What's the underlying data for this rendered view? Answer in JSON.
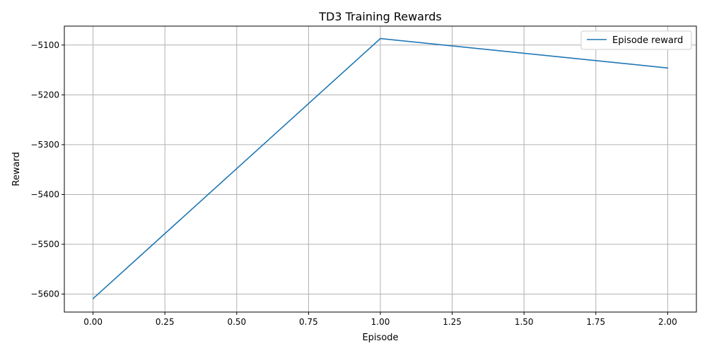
{
  "chart_data": {
    "type": "line",
    "title": "TD3 Training Rewards",
    "xlabel": "Episode",
    "ylabel": "Reward",
    "xlim": [
      -0.1,
      2.1
    ],
    "ylim": [
      -5636,
      -5062
    ],
    "x_ticks": [
      0.0,
      0.25,
      0.5,
      0.75,
      1.0,
      1.25,
      1.5,
      1.75,
      2.0
    ],
    "x_tick_labels": [
      "0.00",
      "0.25",
      "0.50",
      "0.75",
      "1.00",
      "1.25",
      "1.50",
      "1.75",
      "2.00"
    ],
    "y_ticks": [
      -5600,
      -5500,
      -5400,
      -5300,
      -5200,
      -5100
    ],
    "y_tick_labels": [
      "−5600",
      "−5500",
      "−5400",
      "−5300",
      "−5200",
      "−5100"
    ],
    "grid": true,
    "legend_position": "top-right",
    "series": [
      {
        "name": "Episode reward",
        "color": "#1f77b4",
        "x": [
          0,
          1,
          2
        ],
        "y": [
          -5609,
          -5087,
          -5146
        ]
      }
    ]
  }
}
